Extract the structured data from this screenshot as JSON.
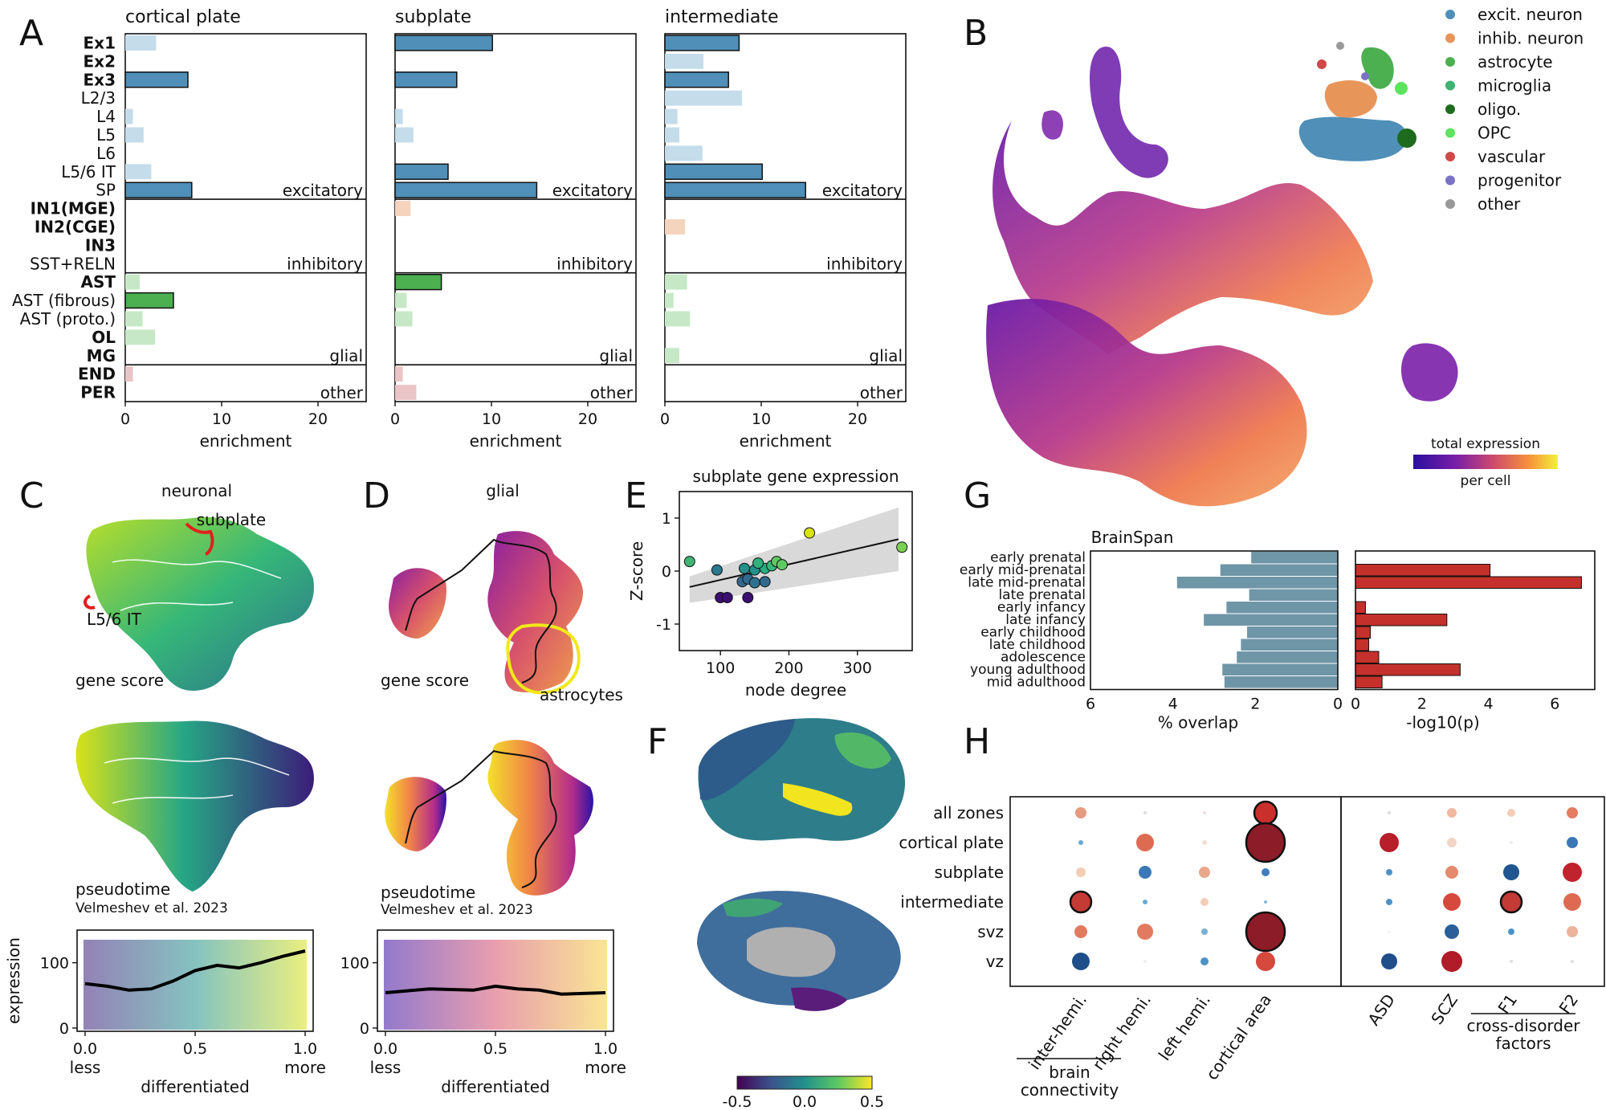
{
  "panel_letters": {
    "a": "A",
    "b": "B",
    "c": "C",
    "d": "D",
    "e": "E",
    "f": "F",
    "g": "G",
    "h": "H"
  },
  "chart_data": [
    {
      "id": "A",
      "type": "bar",
      "orientation": "horizontal",
      "titles": [
        "cortical plate",
        "subplate",
        "intermediate"
      ],
      "xlabel": "enrichment",
      "xlim": [
        0,
        25
      ],
      "xticks": [
        0,
        10,
        20
      ],
      "categories": [
        "Ex1",
        "Ex2",
        "Ex3",
        "L2/3",
        "L4",
        "L5",
        "L6",
        "L5/6 IT",
        "SP",
        "IN1(MGE)",
        "IN2(CGE)",
        "IN3",
        "SST+RELN",
        "AST",
        "AST (fibrous)",
        "AST (proto.)",
        "OL",
        "MG",
        "END",
        "PER"
      ],
      "bold_categories": [
        "Ex1",
        "Ex2",
        "Ex3",
        "IN1(MGE)",
        "IN2(CGE)",
        "IN3",
        "AST",
        "OL",
        "MG",
        "END",
        "PER"
      ],
      "groups": [
        {
          "name": "excitatory",
          "color": "#4f8fb8",
          "light": "#c5dcea",
          "start": 0,
          "end": 8
        },
        {
          "name": "inhibitory",
          "color": "#e8955a",
          "light": "#f5d4bd",
          "start": 9,
          "end": 12
        },
        {
          "name": "glial",
          "color": "#4caf50",
          "light": "#c6e8c6",
          "start": 13,
          "end": 17
        },
        {
          "name": "other",
          "color": "#c97a7e",
          "light": "#eac5c7",
          "start": 18,
          "end": 19
        }
      ],
      "series": [
        {
          "name": "cortical plate",
          "values": [
            3.2,
            0,
            6.5,
            0,
            0.8,
            1.9,
            0,
            2.7,
            6.9,
            0,
            0,
            0,
            0,
            1.5,
            5,
            1.8,
            3.1,
            0,
            0.8,
            0
          ],
          "significant": [
            false,
            false,
            true,
            false,
            false,
            false,
            false,
            false,
            true,
            false,
            false,
            false,
            false,
            false,
            true,
            false,
            false,
            false,
            false,
            false
          ]
        },
        {
          "name": "subplate",
          "values": [
            10.1,
            0,
            6.4,
            0,
            0.8,
            1.9,
            0,
            5.5,
            14.7,
            1.6,
            0,
            0,
            0,
            4.8,
            1.2,
            1.8,
            0,
            0,
            0.8,
            2.2
          ],
          "significant": [
            true,
            false,
            true,
            false,
            false,
            false,
            false,
            true,
            true,
            false,
            false,
            false,
            false,
            true,
            false,
            false,
            false,
            false,
            false,
            false
          ]
        },
        {
          "name": "intermediate",
          "values": [
            7.7,
            4.0,
            6.6,
            8.0,
            1.3,
            1.5,
            3.9,
            10.1,
            14.6,
            0,
            2.1,
            0,
            0,
            2.3,
            0.9,
            2.6,
            0,
            1.5,
            0,
            0
          ],
          "significant": [
            true,
            false,
            true,
            false,
            false,
            false,
            false,
            true,
            true,
            false,
            false,
            false,
            false,
            false,
            false,
            false,
            false,
            false,
            false,
            false
          ]
        }
      ]
    },
    {
      "id": "B",
      "type": "scatter",
      "legend": [
        {
          "label": "excit. neuron",
          "color": "#4f8fb8"
        },
        {
          "label": "inhib. neuron",
          "color": "#e8955a"
        },
        {
          "label": "astrocyte",
          "color": "#4caf50"
        },
        {
          "label": "microglia",
          "color": "#3cb371"
        },
        {
          "label": "oligo.",
          "color": "#1e6b1e"
        },
        {
          "label": "OPC",
          "color": "#5de35d"
        },
        {
          "label": "vascular",
          "color": "#d04848"
        },
        {
          "label": "progenitor",
          "color": "#7a72c4"
        },
        {
          "label": "other",
          "color": "#999999"
        }
      ],
      "colorbar": {
        "title": "total expression",
        "subtitle": "per cell"
      }
    },
    {
      "id": "C",
      "type": "scatter",
      "title": "neuronal",
      "annotations": [
        "subplate",
        "L5/6 IT",
        "gene score",
        "pseudotime",
        "Velmeshev et al. 2023"
      ],
      "line": {
        "x": [
          0.0,
          0.1,
          0.2,
          0.3,
          0.4,
          0.5,
          0.6,
          0.7,
          0.8,
          0.9,
          1.0
        ],
        "y": [
          68,
          64,
          58,
          60,
          72,
          88,
          96,
          92,
          100,
          110,
          118
        ],
        "xlabel_left": "less",
        "xlabel_mid": "differentiated",
        "xlabel_right": "more",
        "ylabel": "expression",
        "xticks": [
          "0.0",
          "0.5",
          "1.0"
        ],
        "yticks": [
          "0",
          "100"
        ],
        "ylim": [
          -5,
          150
        ]
      }
    },
    {
      "id": "D",
      "type": "scatter",
      "title": "glial",
      "annotations": [
        "gene score",
        "astrocytes",
        "pseudotime",
        "Velmeshev et al. 2023"
      ],
      "line": {
        "x": [
          0.0,
          0.1,
          0.2,
          0.3,
          0.4,
          0.5,
          0.6,
          0.7,
          0.8,
          0.9,
          1.0
        ],
        "y": [
          54,
          57,
          60,
          59,
          58,
          64,
          60,
          58,
          52,
          53,
          54
        ],
        "xlabel_left": "less",
        "xlabel_mid": "differentiated",
        "xlabel_right": "more",
        "xticks": [
          "0.0",
          "0.5",
          "1.0"
        ],
        "yticks": [
          "0",
          "100"
        ],
        "ylim": [
          -5,
          150
        ]
      }
    },
    {
      "id": "E",
      "type": "scatter",
      "title": "subplate gene expression",
      "xlabel": "node degree",
      "ylabel": "Z-score",
      "xlim": [
        40,
        380
      ],
      "ylim": [
        -1.5,
        1.5
      ],
      "xticks": [
        100,
        200,
        300
      ],
      "yticks": [
        -1,
        0,
        1
      ],
      "points": [
        {
          "x": 55,
          "y": 0.18,
          "c": "#41b374"
        },
        {
          "x": 95,
          "y": 0.02,
          "c": "#2a788e"
        },
        {
          "x": 100,
          "y": -0.5,
          "c": "#3b0f70"
        },
        {
          "x": 110,
          "y": -0.5,
          "c": "#3b0f70"
        },
        {
          "x": 140,
          "y": -0.5,
          "c": "#3b0f70"
        },
        {
          "x": 132,
          "y": -0.2,
          "c": "#31688e"
        },
        {
          "x": 140,
          "y": -0.15,
          "c": "#31688e"
        },
        {
          "x": 150,
          "y": -0.22,
          "c": "#2c728e"
        },
        {
          "x": 165,
          "y": -0.2,
          "c": "#31688e"
        },
        {
          "x": 135,
          "y": 0.05,
          "c": "#21918c"
        },
        {
          "x": 150,
          "y": 0.02,
          "c": "#21918c"
        },
        {
          "x": 165,
          "y": 0.05,
          "c": "#27ad81"
        },
        {
          "x": 175,
          "y": 0.1,
          "c": "#35b779"
        },
        {
          "x": 182,
          "y": 0.18,
          "c": "#5ec962"
        },
        {
          "x": 190,
          "y": 0.12,
          "c": "#5ec962"
        },
        {
          "x": 155,
          "y": 0.15,
          "c": "#2db27d"
        },
        {
          "x": 230,
          "y": 0.72,
          "c": "#d8e219"
        },
        {
          "x": 365,
          "y": 0.45,
          "c": "#7ad151"
        }
      ],
      "fit": {
        "x0": 55,
        "y0": -0.3,
        "x1": 360,
        "y1": 0.6
      }
    },
    {
      "id": "F",
      "type": "heatmap",
      "colorbar": {
        "min": -0.5,
        "max": 0.5,
        "ticks": [
          "-0.5",
          "0.0",
          "0.5"
        ]
      }
    },
    {
      "id": "G",
      "type": "bar",
      "title": "BrainSpan",
      "categories": [
        "early prenatal",
        "early mid-prenatal",
        "late mid-prenatal",
        "late prenatal",
        "early infancy",
        "late infancy",
        "early childhood",
        "late childhood",
        "adolescence",
        "young adulthood",
        "mid adulthood"
      ],
      "series": [
        {
          "name": "% overlap",
          "values": [
            2.1,
            2.85,
            3.9,
            2.15,
            2.7,
            3.25,
            2.2,
            2.35,
            2.45,
            2.8,
            2.75
          ],
          "color": "#6f96a6",
          "xlim": [
            6,
            0
          ],
          "xticks": [
            "6",
            "4",
            "2",
            "0"
          ]
        },
        {
          "name": "-log10(p)",
          "values": [
            0,
            4.05,
            6.8,
            0,
            0.3,
            2.75,
            0.45,
            0.4,
            0.7,
            3.15,
            0.8
          ],
          "color": "#c4302b",
          "xlim": [
            0,
            7.2
          ],
          "xticks": [
            "0",
            "2",
            "4",
            "6"
          ]
        }
      ]
    },
    {
      "id": "H",
      "type": "scatter",
      "rows": [
        "all zones",
        "cortical plate",
        "subplate",
        "intermediate",
        "svz",
        "vz"
      ],
      "cols_left": [
        "inter-hemi.",
        "right hemi.",
        "left hemi.",
        "cortical area"
      ],
      "cols_right": [
        "ASD",
        "SCZ",
        "F1",
        "F2"
      ],
      "group_left": "brain connectivity",
      "group_right": "cross-disorder factors",
      "cells": [
        [
          {
            "s": 7,
            "c": "#e69a80"
          },
          {
            "s": 2,
            "c": "#dddddd"
          },
          {
            "s": 2,
            "c": "#eddede"
          },
          {
            "s": 14,
            "c": "#c9302c",
            "b": 1
          },
          {
            "s": 2,
            "c": "#dddddd"
          },
          {
            "s": 6,
            "c": "#f0b9a0"
          },
          {
            "s": 5,
            "c": "#f3cdb8"
          },
          {
            "s": 7,
            "c": "#e37c63"
          }
        ],
        [
          {
            "s": 3,
            "c": "#6aa9d0"
          },
          {
            "s": 11,
            "c": "#dd6b52"
          },
          {
            "s": 3,
            "c": "#f3ded6"
          },
          {
            "s": 24,
            "c": "#8c1c27",
            "b": 1
          },
          {
            "s": 12,
            "c": "#b81f2a"
          },
          {
            "s": 6,
            "c": "#f3d5c8"
          },
          {
            "s": 2,
            "c": "#eeeeee"
          },
          {
            "s": 7,
            "c": "#3c78b6"
          }
        ],
        [
          {
            "s": 6,
            "c": "#f4cdb3"
          },
          {
            "s": 8,
            "c": "#3a78b8"
          },
          {
            "s": 7,
            "c": "#e8a88b"
          },
          {
            "s": 5,
            "c": "#3f7ebd"
          },
          {
            "s": 4,
            "c": "#4a93c8"
          },
          {
            "s": 8,
            "c": "#e58b6c"
          },
          {
            "s": 10,
            "c": "#20558f"
          },
          {
            "s": 12,
            "c": "#c0232d"
          }
        ],
        [
          {
            "s": 13,
            "c": "#c43a34",
            "b": 1
          },
          {
            "s": 3,
            "c": "#6aa9d0"
          },
          {
            "s": 5,
            "c": "#f3cdb8"
          },
          {
            "s": 2,
            "c": "#8ab9d8"
          },
          {
            "s": 4,
            "c": "#4a93c8"
          },
          {
            "s": 11,
            "c": "#d6493c"
          },
          {
            "s": 13,
            "c": "#c43a34",
            "b": 1
          },
          {
            "s": 11,
            "c": "#dc6b52"
          }
        ],
        [
          {
            "s": 8,
            "c": "#e27a5f"
          },
          {
            "s": 10,
            "c": "#e27a5f"
          },
          {
            "s": 4,
            "c": "#76b0d6"
          },
          {
            "s": 24,
            "c": "#8c1c27",
            "b": 1
          },
          {
            "s": 1,
            "c": "#dddddd"
          },
          {
            "s": 9,
            "c": "#2a5f99"
          },
          {
            "s": 4,
            "c": "#4a93c8"
          },
          {
            "s": 7,
            "c": "#ecb49c"
          }
        ],
        [
          {
            "s": 11,
            "c": "#1f4e8a"
          },
          {
            "s": 2,
            "c": "#eeeeee"
          },
          {
            "s": 5,
            "c": "#4a93c8"
          },
          {
            "s": 12,
            "c": "#d6493c"
          },
          {
            "s": 10,
            "c": "#1f4e8a"
          },
          {
            "s": 13,
            "c": "#b01c28"
          },
          {
            "s": 2,
            "c": "#dddddd"
          },
          {
            "s": 2,
            "c": "#dddddd"
          }
        ]
      ]
    }
  ]
}
